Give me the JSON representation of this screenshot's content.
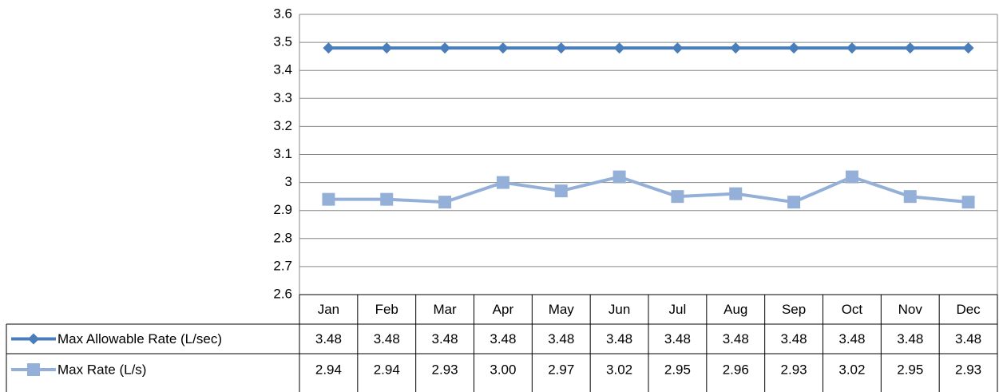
{
  "chart_data": {
    "type": "line",
    "categories": [
      "Jan",
      "Feb",
      "Mar",
      "Apr",
      "May",
      "Jun",
      "Jul",
      "Aug",
      "Sep",
      "Oct",
      "Nov",
      "Dec"
    ],
    "series": [
      {
        "name": "Max Allowable Rate (L/sec)",
        "color": "#4a7ebb",
        "marker": "diamond",
        "values": [
          3.48,
          3.48,
          3.48,
          3.48,
          3.48,
          3.48,
          3.48,
          3.48,
          3.48,
          3.48,
          3.48,
          3.48
        ]
      },
      {
        "name": "Max Rate (L/s)",
        "color": "#95b0d8",
        "marker": "square",
        "values": [
          2.94,
          2.94,
          2.93,
          3.0,
          2.97,
          3.02,
          2.95,
          2.96,
          2.93,
          3.02,
          2.95,
          2.93
        ],
        "value_labels": [
          "2.94",
          "2.94",
          "2.93",
          "3.00",
          "2.97",
          "3.02",
          "2.95",
          "2.96",
          "2.93",
          "3.02",
          "2.95",
          "2.93"
        ]
      }
    ],
    "ylim": [
      2.6,
      3.6
    ],
    "yticks": [
      2.6,
      2.7,
      2.8,
      2.9,
      3,
      3.1,
      3.2,
      3.3,
      3.4,
      3.5,
      3.6
    ],
    "grid": true
  }
}
